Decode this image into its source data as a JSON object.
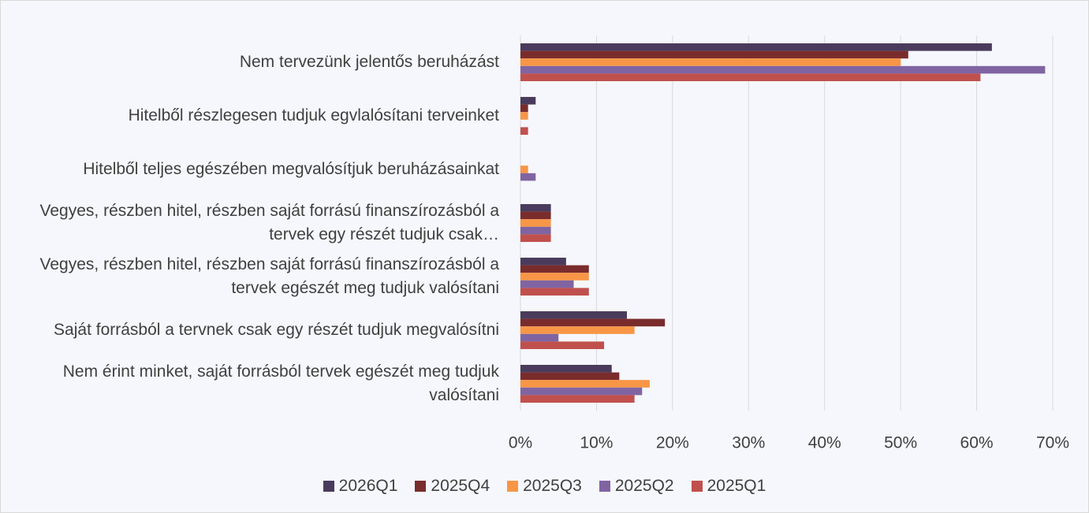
{
  "chart_data": {
    "type": "hbar",
    "categories": [
      "Nem tervezünk jelentős beruházást",
      "Hitelből részlegesen tudjuk egvlalósítani terveinket",
      "Hitelből teljes egészében megvalósítjuk beruházásainkat",
      "Vegyes, részben hitel, részben saját forrású finanszírozásból a tervek egy részét tudjuk csak…",
      "Vegyes, részben hitel, részben saját forrású finanszírozásból a tervek egészét meg tudjuk valósítani",
      "Saját forrásból a tervnek csak egy részét tudjuk megvalósítni",
      "Nem érint minket, saját forrásból tervek egészét meg tudjuk valósítani"
    ],
    "series": [
      {
        "name": "2026Q1",
        "color": "#4a3b5c",
        "values": [
          62,
          2,
          0,
          4,
          6,
          14,
          12
        ]
      },
      {
        "name": "2025Q4",
        "color": "#7a2c2c",
        "values": [
          51,
          1,
          0,
          4,
          9,
          19,
          13
        ]
      },
      {
        "name": "2025Q3",
        "color": "#f79646",
        "values": [
          50,
          1,
          1,
          4,
          9,
          15,
          17
        ]
      },
      {
        "name": "2025Q2",
        "color": "#8064a2",
        "values": [
          69,
          0,
          2,
          4,
          7,
          5,
          16
        ]
      },
      {
        "name": "2025Q1",
        "color": "#c0504d",
        "values": [
          60.5,
          1,
          0,
          4,
          9,
          11,
          15
        ]
      }
    ],
    "xlim": [
      0,
      70
    ],
    "xticks": [
      {
        "value": 0,
        "label": "0%"
      },
      {
        "value": 10,
        "label": "10%"
      },
      {
        "value": 20,
        "label": "20%"
      },
      {
        "value": 30,
        "label": "30%"
      },
      {
        "value": 40,
        "label": "40%"
      },
      {
        "value": 50,
        "label": "50%"
      },
      {
        "value": 60,
        "label": "60%"
      },
      {
        "value": 70,
        "label": "70%"
      }
    ],
    "grid": true,
    "legend": "bottom"
  }
}
